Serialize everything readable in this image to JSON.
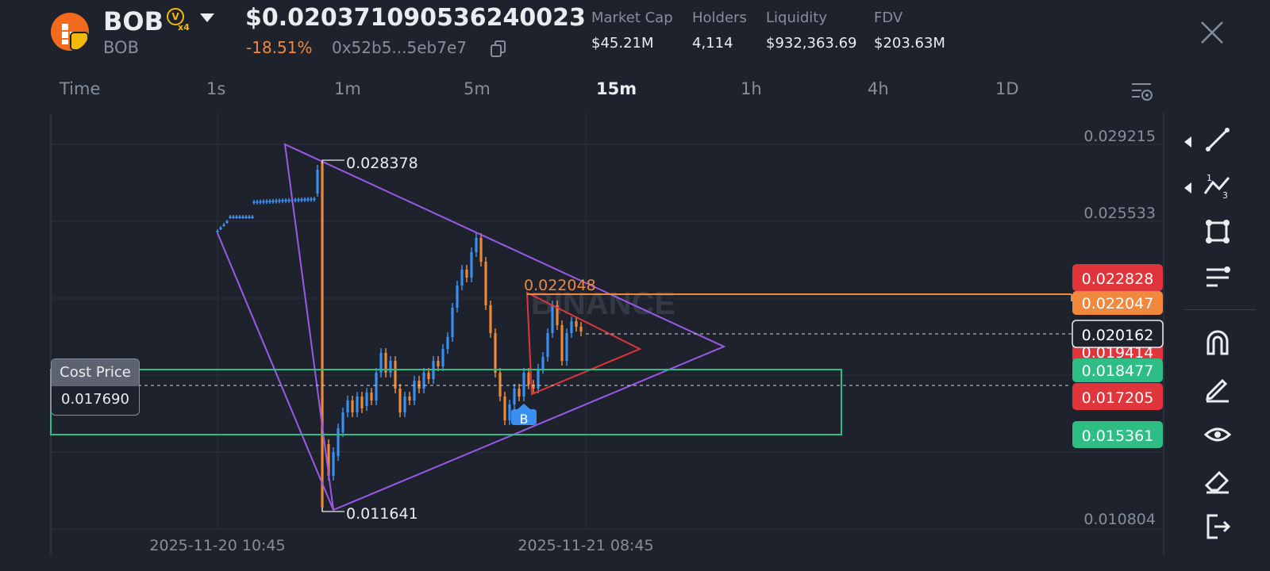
{
  "token": {
    "symbol": "BOB",
    "sub_symbol": "BOB",
    "badge_letter": "V",
    "badge_mult": "x4",
    "price": "$0.020371090536240023",
    "change": "-18.51%",
    "address": "0x52b5...5eb7e7"
  },
  "stats": [
    {
      "label": "Market Cap",
      "value": "$45.21M"
    },
    {
      "label": "Holders",
      "value": "4,114"
    },
    {
      "label": "Liquidity",
      "value": "$932,363.69"
    },
    {
      "label": "FDV",
      "value": "$203.63M"
    }
  ],
  "intervals": [
    "Time",
    "1s",
    "1m",
    "5m",
    "15m",
    "1h",
    "4h",
    "1D"
  ],
  "active_interval": "15m",
  "cost_price": {
    "label": "Cost Price",
    "value": "0.017690"
  },
  "chart_data": {
    "type": "candlestick",
    "y_ticks": [
      "0.029215",
      "0.025533",
      "0.010804"
    ],
    "x_ticks": [
      "2025-11-20 10:45",
      "2025-11-21 08:45"
    ],
    "watermark": "BINANCE",
    "high_label": "0.028378",
    "low_label": "0.011641",
    "level_label": "0.022048",
    "buy_marker": "B",
    "right_tags": [
      {
        "value": "0.022828",
        "color": "#e0353b"
      },
      {
        "value": "0.022047",
        "color": "#f0883e"
      },
      {
        "value": "0.020162",
        "color": "#1e222d"
      },
      {
        "value": "0.019414",
        "color": "#e0353b"
      },
      {
        "value": "0.018477",
        "color": "#2ebd85"
      },
      {
        "value": "0.017205",
        "color": "#e0353b"
      },
      {
        "value": "0.015361",
        "color": "#2ebd85"
      }
    ]
  },
  "colors": {
    "up": "#3b8ff0",
    "down": "#e88a3a",
    "triangle": "#9b59e8",
    "small_triangle": "#e0353b",
    "box": "#2ebd85",
    "level": "#f0883e"
  },
  "toolbar": [
    "line-tool-icon",
    "fib-tool-icon",
    "shape-tool-icon",
    "indicator-tool-icon",
    "magnet-icon",
    "pencil-icon",
    "eye-icon",
    "eraser-icon",
    "exit-icon"
  ]
}
